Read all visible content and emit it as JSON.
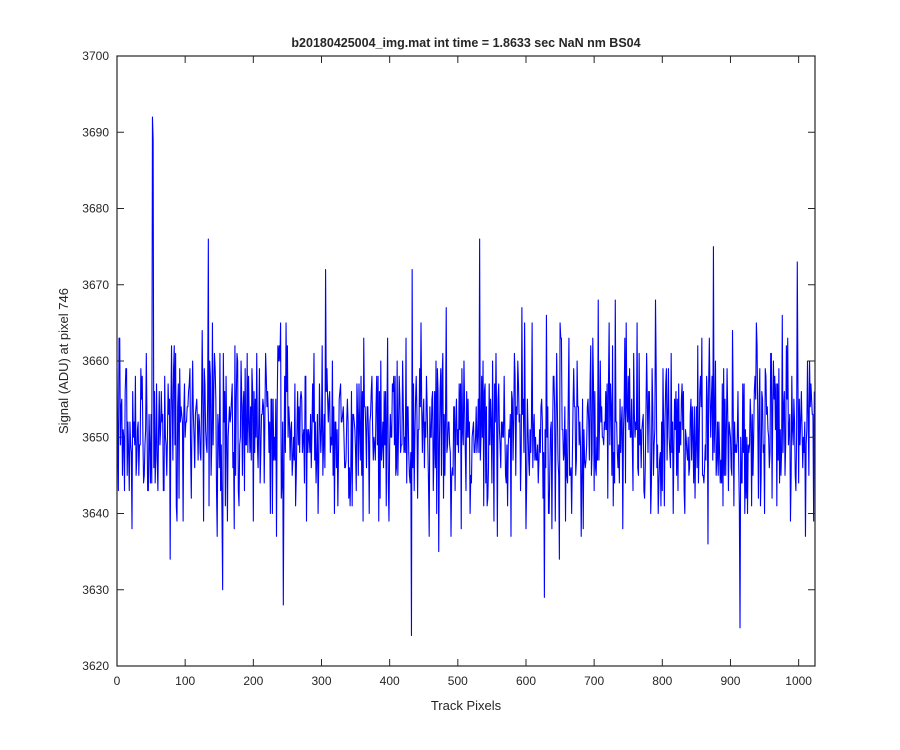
{
  "chart_data": {
    "type": "line",
    "title": "b20180425004_img.mat int time = 1.8633 sec  NaN nm BS04",
    "xlabel": "Track Pixels",
    "ylabel": "Signal (ADU) at pixel 746",
    "xlim": [
      0,
      1024
    ],
    "ylim": [
      3620,
      3700
    ],
    "xticks": [
      0,
      100,
      200,
      300,
      400,
      500,
      600,
      700,
      800,
      900,
      1000
    ],
    "yticks": [
      3620,
      3630,
      3640,
      3650,
      3660,
      3670,
      3680,
      3690,
      3700
    ],
    "grid": false,
    "legend": "none",
    "n_points": 1024,
    "mean": 3651,
    "std_approx": 6.5,
    "notable_points": [
      {
        "x": 52,
        "y": 3692
      },
      {
        "x": 53,
        "y": 3689
      },
      {
        "x": 134,
        "y": 3676
      },
      {
        "x": 155,
        "y": 3630
      },
      {
        "x": 244,
        "y": 3628
      },
      {
        "x": 306,
        "y": 3672
      },
      {
        "x": 432,
        "y": 3624
      },
      {
        "x": 433,
        "y": 3672
      },
      {
        "x": 532,
        "y": 3676
      },
      {
        "x": 627,
        "y": 3629
      },
      {
        "x": 875,
        "y": 3675
      },
      {
        "x": 914,
        "y": 3625
      },
      {
        "x": 998,
        "y": 3673
      }
    ],
    "series": [
      {
        "color": "#0000ff"
      }
    ]
  }
}
